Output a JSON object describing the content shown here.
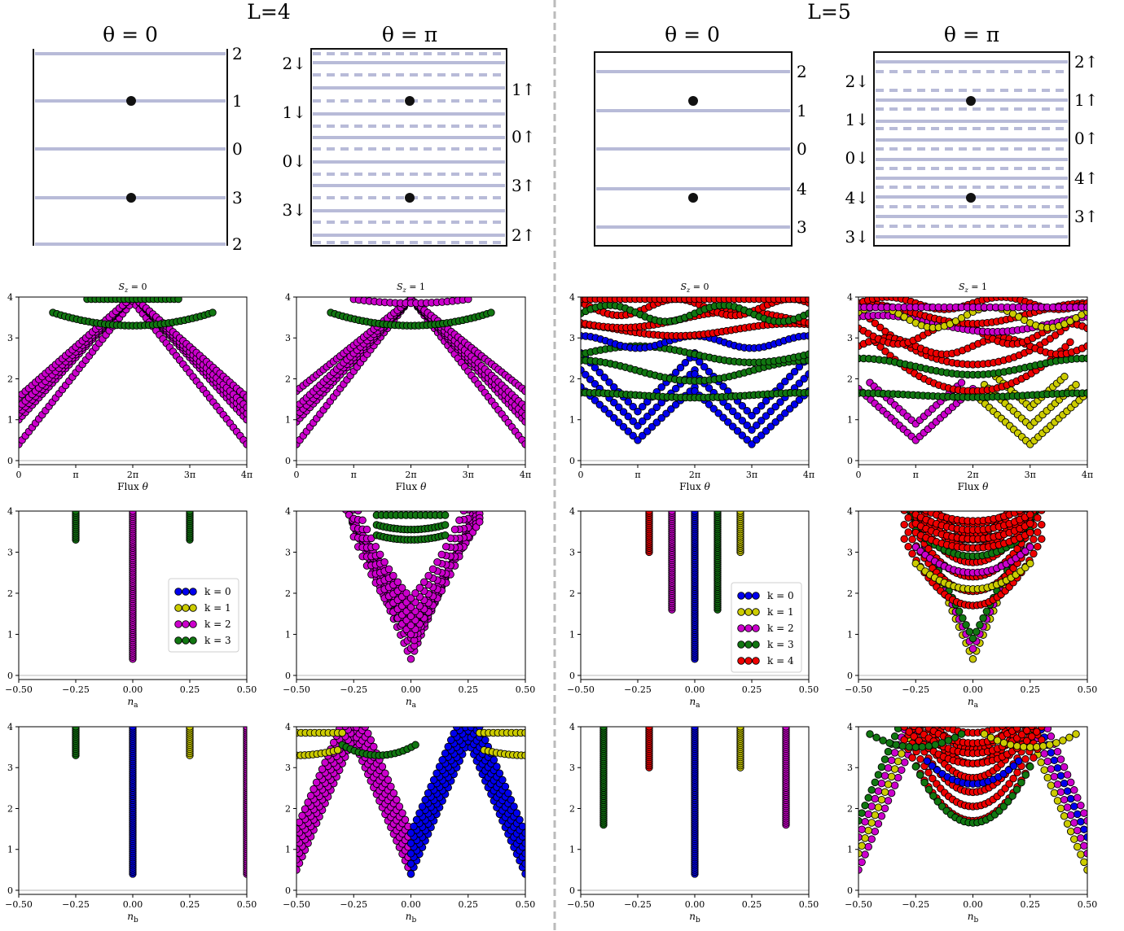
{
  "headers": {
    "left_group": "L=4",
    "right_group": "L=5",
    "theta_zero": "θ = 0",
    "theta_pi": "θ = π"
  },
  "colors": {
    "k0": "#0000ee",
    "k1": "#cccc00",
    "k2": "#cc00cc",
    "k3": "#117711",
    "k4": "#ee0000",
    "band": "#b8bbd8",
    "separator": "#bbbbbb"
  },
  "level_diagrams": [
    {
      "panel": "L4-theta0",
      "right_labels": [
        "2",
        "1",
        "0",
        "3",
        "2"
      ],
      "left_labels": [],
      "dots_at": [
        "1",
        "3"
      ]
    },
    {
      "panel": "L4-thetapi",
      "left_labels": [
        "2↓",
        "1↓",
        "0↓",
        "3↓"
      ],
      "right_labels": [
        "1↑",
        "0↑",
        "3↑",
        "2↑"
      ],
      "dots_at": [
        "1",
        "3"
      ]
    },
    {
      "panel": "L5-theta0",
      "right_labels": [
        "2",
        "1",
        "0",
        "4",
        "3"
      ],
      "left_labels": [],
      "dots_at": [
        "1",
        "4"
      ]
    },
    {
      "panel": "L5-thetapi",
      "left_labels": [
        "2↓",
        "1↓",
        "0↓",
        "4↓",
        "3↓"
      ],
      "right_labels": [
        "2↑",
        "1↑",
        "0↑",
        "4↑",
        "3↑"
      ],
      "dots_at": [
        "1",
        "4"
      ]
    }
  ],
  "chart_data": [
    {
      "panel": "row2-L4-Sz0",
      "type": "scatter",
      "title": "S_z = 0",
      "xlabel": "Flux θ",
      "xticks": [
        "0",
        "π",
        "2π",
        "3π",
        "4π"
      ],
      "xlim": [
        0,
        12.566
      ],
      "ylim": [
        -0.1,
        4
      ],
      "yticks": [
        "0",
        "1",
        "2",
        "3",
        "4"
      ],
      "series": [
        {
          "color_key": "k2",
          "description": "descending branches from ~1.1 to ~3.9 at 0 and 4π, minimum 0.4 at 0 rising to ~3.9 at 2π"
        },
        {
          "color_key": "k3",
          "description": "arc minimum 3.3 at 2π"
        }
      ]
    },
    {
      "panel": "row2-L4-Sz1",
      "type": "scatter",
      "title": "S_z = 1",
      "xlabel": "Flux θ",
      "xticks": [
        "0",
        "π",
        "2π",
        "3π",
        "4π"
      ],
      "xlim": [
        0,
        12.566
      ],
      "ylim": [
        -0.1,
        4
      ],
      "yticks": [
        "0",
        "1",
        "2",
        "3",
        "4"
      ],
      "series": [
        {
          "color_key": "k2",
          "description": "V-shaped branches, minimum 0.4 at 0 and 4π, ~3.9 near 2π"
        },
        {
          "color_key": "k3",
          "description": "arc minimum 3.3 at 2π"
        }
      ]
    },
    {
      "panel": "row2-L5-Sz0",
      "type": "scatter",
      "title": "S_z = 0",
      "xlabel": "Flux θ",
      "xticks": [
        "0",
        "π",
        "2π",
        "3π",
        "4π"
      ],
      "xlim": [
        0,
        12.566
      ],
      "ylim": [
        -0.1,
        4
      ],
      "yticks": [
        "0",
        "1",
        "2",
        "3",
        "4"
      ],
      "series": [
        {
          "color_key": "k0",
          "description": "V branches with minima 0.5 at π and 0.4 at 3π, peaks 1.8 at 0, 2π, 4π"
        },
        {
          "color_key": "k3",
          "description": "band near 1.6-1.8 and arcs up to 4"
        },
        {
          "color_key": "k4",
          "description": "arcs between 3 and 4"
        }
      ]
    },
    {
      "panel": "row2-L5-Sz1",
      "type": "scatter",
      "title": "S_z = 1",
      "xlabel": "Flux θ",
      "xticks": [
        "0",
        "π",
        "2π",
        "3π",
        "4π"
      ],
      "xlim": [
        0,
        12.566
      ],
      "ylim": [
        -0.1,
        4
      ],
      "yticks": [
        "0",
        "1",
        "2",
        "3",
        "4"
      ],
      "series": [
        {
          "color_key": "k2",
          "description": "V minimum 0.5 at π"
        },
        {
          "color_key": "k1",
          "description": "V minimum 0.4 at 3π"
        },
        {
          "color_key": "k4",
          "description": "arc minimum 1.7 at 2π"
        },
        {
          "color_key": "k3",
          "description": "band near 1.6-2.4"
        }
      ]
    },
    {
      "panel": "row3-L4-na",
      "type": "scatter",
      "xlabel": "n_a",
      "xticks": [
        "−0.50",
        "−0.25",
        "0.00",
        "0.25",
        "0.50"
      ],
      "xlim": [
        -0.5,
        0.5
      ],
      "ylim": [
        -0.1,
        4
      ],
      "columns": [
        {
          "x": -0.25,
          "ymin": 3.3,
          "ymax": 4,
          "color_key": "k3"
        },
        {
          "x": 0,
          "ymin": 0.4,
          "ymax": 4,
          "color_key": "k2"
        },
        {
          "x": 0.25,
          "ymin": 3.3,
          "ymax": 4,
          "color_key": "k3"
        }
      ],
      "legend": [
        "k = 0",
        "k = 1",
        "k = 2",
        "k = 3"
      ]
    },
    {
      "panel": "row3-L4-na-pi",
      "type": "scatter",
      "xlabel": "n_a",
      "xticks": [
        "−0.50",
        "−0.25",
        "0.00",
        "0.25",
        "0.50"
      ],
      "xlim": [
        -0.5,
        0.5
      ],
      "ylim": [
        -0.1,
        4
      ],
      "series": [
        {
          "color_key": "k2",
          "description": "V cone minimum 0.4 at 0"
        },
        {
          "color_key": "k3",
          "description": "arc minimum 3.3 at 0"
        }
      ]
    },
    {
      "panel": "row3-L5-na",
      "type": "scatter",
      "xlabel": "n_a",
      "xticks": [
        "−0.50",
        "−0.25",
        "0.00",
        "0.25",
        "0.50"
      ],
      "xlim": [
        -0.5,
        0.5
      ],
      "ylim": [
        -0.1,
        4
      ],
      "columns": [
        {
          "x": -0.2,
          "ymin": 3.0,
          "ymax": 4,
          "color_key": "k4"
        },
        {
          "x": -0.1,
          "ymin": 1.6,
          "ymax": 4,
          "color_key": "k2"
        },
        {
          "x": 0,
          "ymin": 0.4,
          "ymax": 4,
          "color_key": "k0"
        },
        {
          "x": 0.1,
          "ymin": 1.6,
          "ymax": 4,
          "color_key": "k3"
        },
        {
          "x": 0.2,
          "ymin": 3.0,
          "ymax": 4,
          "color_key": "k1"
        }
      ],
      "legend": [
        "k = 0",
        "k = 1",
        "k = 2",
        "k = 3",
        "k = 4"
      ]
    },
    {
      "panel": "row3-L5-na-pi",
      "type": "scatter",
      "xlabel": "n_a",
      "xticks": [
        "−0.50",
        "−0.25",
        "0.00",
        "0.25",
        "0.50"
      ],
      "xlim": [
        -0.5,
        0.5
      ],
      "ylim": [
        -0.1,
        4
      ],
      "series": [
        {
          "color_key": "k1",
          "description": "V cone minimum 0.4 at 0"
        },
        {
          "color_key": "k4",
          "description": "arcs minimum 1.7 at 0"
        },
        {
          "color_key": "k3",
          "description": "inner cone"
        },
        {
          "color_key": "k2",
          "description": "cone"
        }
      ]
    },
    {
      "panel": "row4-L4-nb",
      "type": "scatter",
      "xlabel": "n_b",
      "xticks": [
        "−0.50",
        "−0.25",
        "0.00",
        "0.25",
        "0.50"
      ],
      "xlim": [
        -0.5,
        0.5
      ],
      "ylim": [
        -0.1,
        4
      ],
      "columns": [
        {
          "x": -0.25,
          "ymin": 3.3,
          "ymax": 4,
          "color_key": "k3"
        },
        {
          "x": 0,
          "ymin": 0.4,
          "ymax": 4,
          "color_key": "k0"
        },
        {
          "x": 0.25,
          "ymin": 3.3,
          "ymax": 4,
          "color_key": "k1"
        },
        {
          "x": 0.5,
          "ymin": 0.4,
          "ymax": 4,
          "color_key": "k2"
        }
      ]
    },
    {
      "panel": "row4-L4-nb-pi",
      "type": "scatter",
      "xlabel": "n_b",
      "xticks": [
        "−0.50",
        "−0.25",
        "0.00",
        "0.25",
        "0.50"
      ],
      "xlim": [
        -0.5,
        0.5
      ],
      "ylim": [
        -0.1,
        4
      ],
      "series": [
        {
          "color_key": "k2",
          "description": "V cones minima 0.4 at -0.5 and 0"
        },
        {
          "color_key": "k0",
          "description": "V cones minima 0.4 at 0 and 0.5"
        },
        {
          "color_key": "k3",
          "description": "arc minimum 3.3 at -0.25"
        },
        {
          "color_key": "k1",
          "description": "arcs near 3.3-3.9 at ±0.5"
        }
      ]
    },
    {
      "panel": "row4-L5-nb",
      "type": "scatter",
      "xlabel": "n_b",
      "xticks": [
        "−0.50",
        "−0.25",
        "0.00",
        "0.25",
        "0.50"
      ],
      "xlim": [
        -0.5,
        0.5
      ],
      "ylim": [
        -0.1,
        4
      ],
      "columns": [
        {
          "x": -0.4,
          "ymin": 1.6,
          "ymax": 4,
          "color_key": "k3"
        },
        {
          "x": -0.2,
          "ymin": 3.0,
          "ymax": 4,
          "color_key": "k4"
        },
        {
          "x": 0,
          "ymin": 0.4,
          "ymax": 4,
          "color_key": "k0"
        },
        {
          "x": 0.2,
          "ymin": 3.0,
          "ymax": 4,
          "color_key": "k1"
        },
        {
          "x": 0.4,
          "ymin": 1.6,
          "ymax": 4,
          "color_key": "k2"
        }
      ]
    },
    {
      "panel": "row4-L5-nb-pi",
      "type": "scatter",
      "xlabel": "n_b",
      "xticks": [
        "−0.50",
        "−0.25",
        "0.00",
        "0.25",
        "0.50"
      ],
      "xlim": [
        -0.5,
        0.5
      ],
      "ylim": [
        -0.1,
        4
      ],
      "series": [
        {
          "color_key": "k4",
          "description": "arcs minimum 1.7 at 0"
        },
        {
          "color_key": "k2",
          "description": "cones minima at ±0.5"
        },
        {
          "color_key": "k1",
          "description": "cones"
        },
        {
          "color_key": "k3",
          "description": "arc near -0.25"
        },
        {
          "color_key": "k0",
          "description": "arcs"
        }
      ]
    }
  ],
  "legend_items": [
    "k = 0",
    "k = 1",
    "k = 2",
    "k = 3",
    "k = 4"
  ]
}
